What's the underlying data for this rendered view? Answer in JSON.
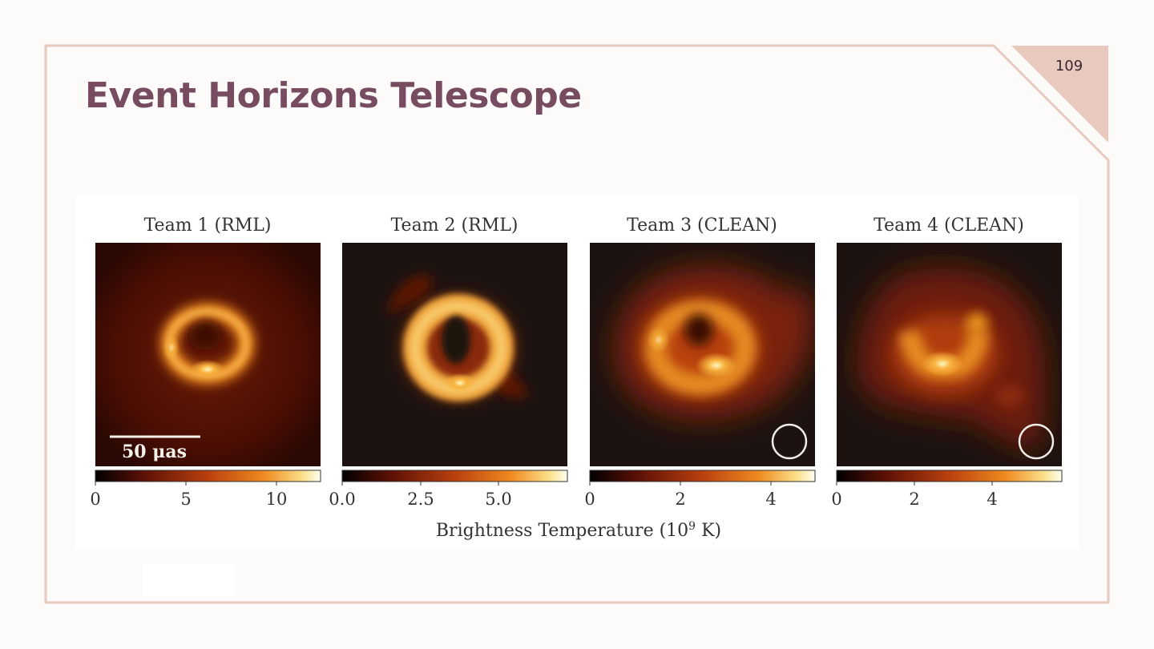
{
  "slide": {
    "title": "Event Horizons Telescope",
    "page_number": "109"
  },
  "figure": {
    "panels": [
      {
        "title": "Team 1 (RML)",
        "ticks": [
          "0",
          "5",
          "10"
        ],
        "scale_bar_label": "50 μas",
        "beam_circle": false
      },
      {
        "title": "Team 2 (RML)",
        "ticks": [
          "0.0",
          "2.5",
          "5.0"
        ],
        "beam_circle": false
      },
      {
        "title": "Team 3 (CLEAN)",
        "ticks": [
          "0",
          "2",
          "4"
        ],
        "beam_circle": true
      },
      {
        "title": "Team 4 (CLEAN)",
        "ticks": [
          "0",
          "2",
          "4"
        ],
        "beam_circle": true
      }
    ],
    "colorbar_label": "Brightness Temperature (10",
    "colorbar_label_exp": "9",
    "colorbar_label_tail": " K)"
  },
  "colors": {
    "title": "#774b60",
    "frame": "#e8c9be",
    "image_background": "#1c1310",
    "colormap": [
      "#000000",
      "#5e1106",
      "#b9400e",
      "#ef8a20",
      "#fbe08a",
      "#fffff0"
    ]
  }
}
